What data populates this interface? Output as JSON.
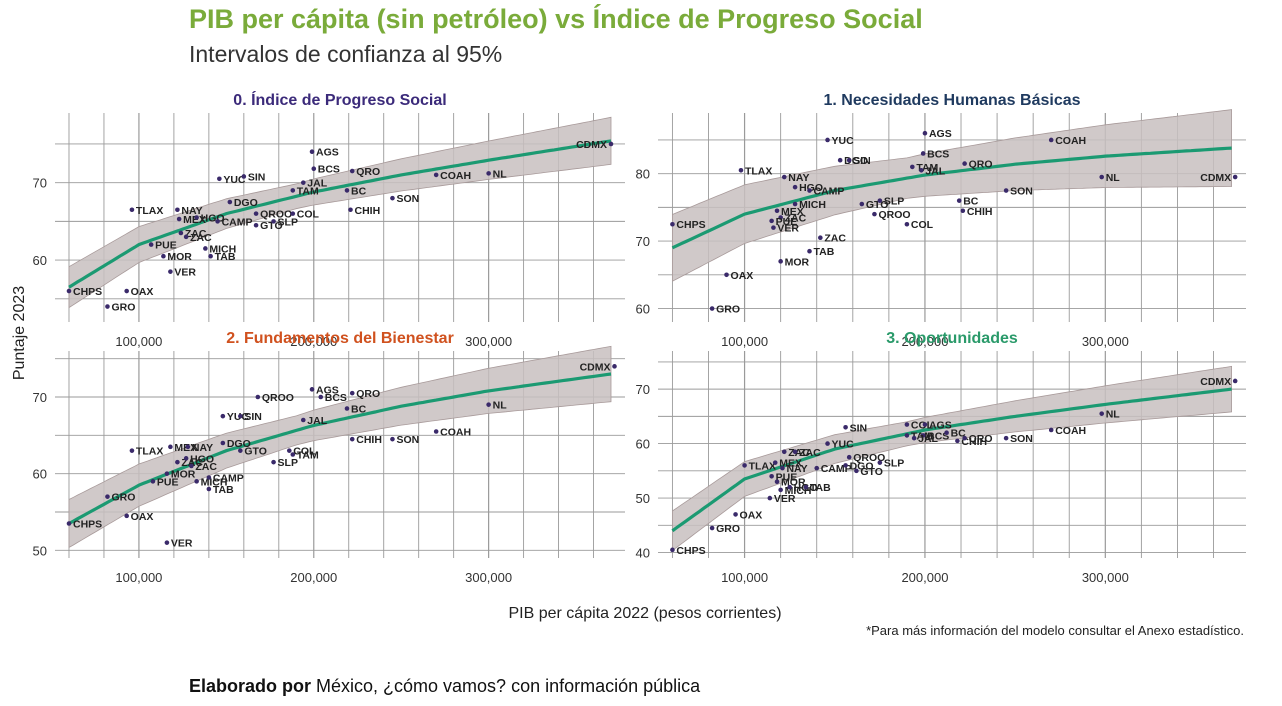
{
  "header": {
    "title": "PIB per cápita (sin petróleo) vs Índice de Progreso Social",
    "subtitle": "Intervalos de confianza al 95%"
  },
  "footer": {
    "footnote": "*Para más información del modelo consultar el Anexo estadístico.",
    "credit_bold": "Elaborado por",
    "credit_rest": " México, ¿cómo vamos? con información pública"
  },
  "colors": {
    "title": "#7aab3a",
    "panel0_title": "#3b2a7a",
    "panel1_title": "#1f3a5f",
    "panel2_title": "#d0511e",
    "panel3_title": "#2a9a6a",
    "fit_line": "#1b9a72",
    "band": "#c8c0c0",
    "point": "#3a2a6a"
  },
  "chart_data": [
    {
      "type": "scatter",
      "title": "0. Índice de Progreso Social",
      "xlabel": "PIB per cápita 2022 (pesos corrientes)",
      "ylabel": "Puntaje 2023",
      "xlim": [
        52000,
        378000
      ],
      "ylim": [
        52,
        79
      ],
      "xticks": [
        100000,
        200000,
        300000
      ],
      "xtick_labels": [
        "100,000",
        "200,000",
        "300,000"
      ],
      "yticks": [
        60,
        70
      ],
      "grid": true,
      "fit": {
        "x": [
          60000,
          100000,
          150000,
          200000,
          250000,
          300000,
          370000
        ],
        "y": [
          56.5,
          62.0,
          66.0,
          68.8,
          71.0,
          72.9,
          75.4
        ],
        "band": 1.6
      },
      "points": [
        {
          "label": "CHPS",
          "x": 60000,
          "y": 56.0
        },
        {
          "label": "GRO",
          "x": 82000,
          "y": 54.0
        },
        {
          "label": "OAX",
          "x": 93000,
          "y": 56.0
        },
        {
          "label": "TLAX",
          "x": 96000,
          "y": 66.5
        },
        {
          "label": "PUE",
          "x": 107000,
          "y": 62.0
        },
        {
          "label": "MOR",
          "x": 114000,
          "y": 60.5
        },
        {
          "label": "VER",
          "x": 118000,
          "y": 58.5
        },
        {
          "label": "NAY",
          "x": 122000,
          "y": 66.5
        },
        {
          "label": "MEX",
          "x": 123000,
          "y": 65.3
        },
        {
          "label": "ZAC",
          "x": 124000,
          "y": 63.5
        },
        {
          "label": "ZAC",
          "x": 127000,
          "y": 63.0
        },
        {
          "label": "HGO",
          "x": 133000,
          "y": 65.5
        },
        {
          "label": "MICH",
          "x": 138000,
          "y": 61.5
        },
        {
          "label": "CAMP",
          "x": 145000,
          "y": 65.0
        },
        {
          "label": "TAB",
          "x": 141000,
          "y": 60.5
        },
        {
          "label": "YUC",
          "x": 146000,
          "y": 70.5
        },
        {
          "label": "DGO",
          "x": 152000,
          "y": 67.5
        },
        {
          "label": "SIN",
          "x": 160000,
          "y": 70.8
        },
        {
          "label": "QROO",
          "x": 167000,
          "y": 66.0
        },
        {
          "label": "GTO",
          "x": 167000,
          "y": 64.5
        },
        {
          "label": "SLP",
          "x": 177000,
          "y": 65.0
        },
        {
          "label": "TAM",
          "x": 188000,
          "y": 69.0
        },
        {
          "label": "COL",
          "x": 188000,
          "y": 66.0
        },
        {
          "label": "AGS",
          "x": 199000,
          "y": 74.0
        },
        {
          "label": "BCS",
          "x": 200000,
          "y": 71.8
        },
        {
          "label": "JAL",
          "x": 194000,
          "y": 70.0
        },
        {
          "label": "BC",
          "x": 219000,
          "y": 69.0
        },
        {
          "label": "CHIH",
          "x": 221000,
          "y": 66.5
        },
        {
          "label": "QRO",
          "x": 222000,
          "y": 71.5
        },
        {
          "label": "SON",
          "x": 245000,
          "y": 68.0
        },
        {
          "label": "COAH",
          "x": 270000,
          "y": 71.0
        },
        {
          "label": "NL",
          "x": 300000,
          "y": 71.2
        },
        {
          "label": "CDMX",
          "x": 370000,
          "y": 75.0
        }
      ]
    },
    {
      "type": "scatter",
      "title": "1. Necesidades Humanas Básicas",
      "xlim": [
        52000,
        378000
      ],
      "ylim": [
        58,
        89
      ],
      "xticks": [
        100000,
        200000,
        300000
      ],
      "xtick_labels": [
        "100,000",
        "200,000",
        "300,000"
      ],
      "yticks": [
        60,
        70,
        80
      ],
      "grid": true,
      "fit": {
        "x": [
          60000,
          100000,
          150000,
          200000,
          250000,
          300000,
          370000
        ],
        "y": [
          69.0,
          74.0,
          77.5,
          79.8,
          81.4,
          82.6,
          83.8
        ],
        "band": 3.0
      },
      "points": [
        {
          "label": "CHPS",
          "x": 60000,
          "y": 72.5
        },
        {
          "label": "GRO",
          "x": 82000,
          "y": 60.0
        },
        {
          "label": "OAX",
          "x": 90000,
          "y": 65.0
        },
        {
          "label": "TLAX",
          "x": 98000,
          "y": 80.5
        },
        {
          "label": "NAY",
          "x": 122000,
          "y": 79.5
        },
        {
          "label": "HGO",
          "x": 128000,
          "y": 78.0
        },
        {
          "label": "CAMP",
          "x": 136000,
          "y": 77.5
        },
        {
          "label": "MEX",
          "x": 118000,
          "y": 74.5
        },
        {
          "label": "ZAC",
          "x": 120000,
          "y": 73.5
        },
        {
          "label": "PUE",
          "x": 115000,
          "y": 73.0
        },
        {
          "label": "VER",
          "x": 116000,
          "y": 72.0
        },
        {
          "label": "MICH",
          "x": 128000,
          "y": 75.5
        },
        {
          "label": "ZAC",
          "x": 142000,
          "y": 70.5
        },
        {
          "label": "TAB",
          "x": 136000,
          "y": 68.5
        },
        {
          "label": "MOR",
          "x": 120000,
          "y": 67.0
        },
        {
          "label": "YUC",
          "x": 146000,
          "y": 85.0
        },
        {
          "label": "DGO",
          "x": 153000,
          "y": 82.0
        },
        {
          "label": "SIN",
          "x": 158000,
          "y": 82.0
        },
        {
          "label": "GTO",
          "x": 165000,
          "y": 75.5
        },
        {
          "label": "SLP",
          "x": 175000,
          "y": 76.0
        },
        {
          "label": "QROO",
          "x": 172000,
          "y": 74.0
        },
        {
          "label": "COL",
          "x": 190000,
          "y": 72.5
        },
        {
          "label": "AGS",
          "x": 200000,
          "y": 86.0
        },
        {
          "label": "BCS",
          "x": 199000,
          "y": 83.0
        },
        {
          "label": "TAM",
          "x": 193000,
          "y": 81.0
        },
        {
          "label": "JAL",
          "x": 198000,
          "y": 80.5
        },
        {
          "label": "QRO",
          "x": 222000,
          "y": 81.5
        },
        {
          "label": "BC",
          "x": 219000,
          "y": 76.0
        },
        {
          "label": "CHIH",
          "x": 221000,
          "y": 74.5
        },
        {
          "label": "SON",
          "x": 245000,
          "y": 77.5
        },
        {
          "label": "COAH",
          "x": 270000,
          "y": 85.0
        },
        {
          "label": "NL",
          "x": 298000,
          "y": 79.5
        },
        {
          "label": "CDMX",
          "x": 372000,
          "y": 79.5
        }
      ]
    },
    {
      "type": "scatter",
      "title": "2. Fundamentos del Bienestar",
      "xlim": [
        52000,
        378000
      ],
      "ylim": [
        49,
        76
      ],
      "xticks": [
        100000,
        200000,
        300000
      ],
      "xtick_labels": [
        "100,000",
        "200,000",
        "300,000"
      ],
      "yticks": [
        50,
        60,
        70
      ],
      "grid": true,
      "fit": {
        "x": [
          60000,
          100000,
          150000,
          200000,
          250000,
          300000,
          370000
        ],
        "y": [
          53.5,
          58.5,
          63.0,
          66.3,
          68.8,
          70.8,
          73.0
        ],
        "band": 1.9
      },
      "points": [
        {
          "label": "CHPS",
          "x": 60000,
          "y": 53.5
        },
        {
          "label": "GRO",
          "x": 82000,
          "y": 57.0
        },
        {
          "label": "OAX",
          "x": 93000,
          "y": 54.5
        },
        {
          "label": "VER",
          "x": 116000,
          "y": 51.0
        },
        {
          "label": "TLAX",
          "x": 96000,
          "y": 63.0
        },
        {
          "label": "PUE",
          "x": 108000,
          "y": 59.0
        },
        {
          "label": "MOR",
          "x": 116000,
          "y": 60.0
        },
        {
          "label": "ZAC",
          "x": 122000,
          "y": 61.5
        },
        {
          "label": "MEX",
          "x": 118000,
          "y": 63.5
        },
        {
          "label": "NAY",
          "x": 128000,
          "y": 63.5
        },
        {
          "label": "HGO",
          "x": 127000,
          "y": 62.0
        },
        {
          "label": "ZAC",
          "x": 130000,
          "y": 61.0
        },
        {
          "label": "MICH",
          "x": 133000,
          "y": 59.0
        },
        {
          "label": "CAMP",
          "x": 140000,
          "y": 59.5
        },
        {
          "label": "TAB",
          "x": 140000,
          "y": 58.0
        },
        {
          "label": "DGO",
          "x": 148000,
          "y": 64.0
        },
        {
          "label": "GTO",
          "x": 158000,
          "y": 63.0
        },
        {
          "label": "YUC",
          "x": 148000,
          "y": 67.5
        },
        {
          "label": "SIN",
          "x": 158000,
          "y": 67.5
        },
        {
          "label": "QROO",
          "x": 168000,
          "y": 70.0
        },
        {
          "label": "COL",
          "x": 186000,
          "y": 63.0
        },
        {
          "label": "SLP",
          "x": 177000,
          "y": 61.5
        },
        {
          "label": "TAM",
          "x": 188000,
          "y": 62.5
        },
        {
          "label": "JAL",
          "x": 194000,
          "y": 67.0
        },
        {
          "label": "AGS",
          "x": 199000,
          "y": 71.0
        },
        {
          "label": "BCS",
          "x": 204000,
          "y": 70.0
        },
        {
          "label": "BC",
          "x": 219000,
          "y": 68.5
        },
        {
          "label": "QRO",
          "x": 222000,
          "y": 70.5
        },
        {
          "label": "CHIH",
          "x": 222000,
          "y": 64.5
        },
        {
          "label": "SON",
          "x": 245000,
          "y": 64.5
        },
        {
          "label": "COAH",
          "x": 270000,
          "y": 65.5
        },
        {
          "label": "NL",
          "x": 300000,
          "y": 69.0
        },
        {
          "label": "CDMX",
          "x": 372000,
          "y": 74.0
        }
      ]
    },
    {
      "type": "scatter",
      "title": "3. Oportunidades",
      "xlim": [
        52000,
        378000
      ],
      "ylim": [
        39,
        77
      ],
      "xticks": [
        100000,
        200000,
        300000
      ],
      "xtick_labels": [
        "100,000",
        "200,000",
        "300,000"
      ],
      "yticks": [
        40,
        50,
        60,
        70
      ],
      "grid": true,
      "fit": {
        "x": [
          60000,
          100000,
          150000,
          200000,
          250000,
          300000,
          370000
        ],
        "y": [
          44.0,
          53.5,
          59.0,
          62.5,
          65.0,
          67.2,
          70.0
        ],
        "band": 2.2
      },
      "points": [
        {
          "label": "CHPS",
          "x": 60000,
          "y": 40.5
        },
        {
          "label": "GRO",
          "x": 82000,
          "y": 44.5
        },
        {
          "label": "OAX",
          "x": 95000,
          "y": 47.0
        },
        {
          "label": "VER",
          "x": 114000,
          "y": 50.0
        },
        {
          "label": "TLAX",
          "x": 100000,
          "y": 56.0
        },
        {
          "label": "PUE",
          "x": 115000,
          "y": 54.0
        },
        {
          "label": "MOR",
          "x": 118000,
          "y": 53.0
        },
        {
          "label": "MICH",
          "x": 120000,
          "y": 51.5
        },
        {
          "label": "MEX",
          "x": 117000,
          "y": 56.5
        },
        {
          "label": "NAY",
          "x": 121000,
          "y": 55.5
        },
        {
          "label": "CAMP",
          "x": 140000,
          "y": 55.5
        },
        {
          "label": "ZAC",
          "x": 122000,
          "y": 58.5
        },
        {
          "label": "ZAC",
          "x": 128000,
          "y": 58.5
        },
        {
          "label": "HGO",
          "x": 125000,
          "y": 52.0
        },
        {
          "label": "TAB",
          "x": 134000,
          "y": 52.0
        },
        {
          "label": "YUC",
          "x": 146000,
          "y": 60.0
        },
        {
          "label": "SIN",
          "x": 156000,
          "y": 63.0
        },
        {
          "label": "QROO",
          "x": 158000,
          "y": 57.5
        },
        {
          "label": "DGO",
          "x": 156000,
          "y": 56.0
        },
        {
          "label": "GTO",
          "x": 162000,
          "y": 55.0
        },
        {
          "label": "SLP",
          "x": 175000,
          "y": 56.5
        },
        {
          "label": "COL",
          "x": 190000,
          "y": 63.5
        },
        {
          "label": "TAM",
          "x": 190000,
          "y": 61.5
        },
        {
          "label": "AGS",
          "x": 200000,
          "y": 63.5
        },
        {
          "label": "BCS",
          "x": 199000,
          "y": 61.5
        },
        {
          "label": "JAL",
          "x": 194000,
          "y": 61.0
        },
        {
          "label": "BC",
          "x": 212000,
          "y": 62.0
        },
        {
          "label": "CHIH",
          "x": 218000,
          "y": 60.5
        },
        {
          "label": "QRO",
          "x": 222000,
          "y": 61.0
        },
        {
          "label": "SON",
          "x": 245000,
          "y": 61.0
        },
        {
          "label": "COAH",
          "x": 270000,
          "y": 62.5
        },
        {
          "label": "NL",
          "x": 298000,
          "y": 65.5
        },
        {
          "label": "CDMX",
          "x": 372000,
          "y": 71.5
        }
      ]
    }
  ]
}
